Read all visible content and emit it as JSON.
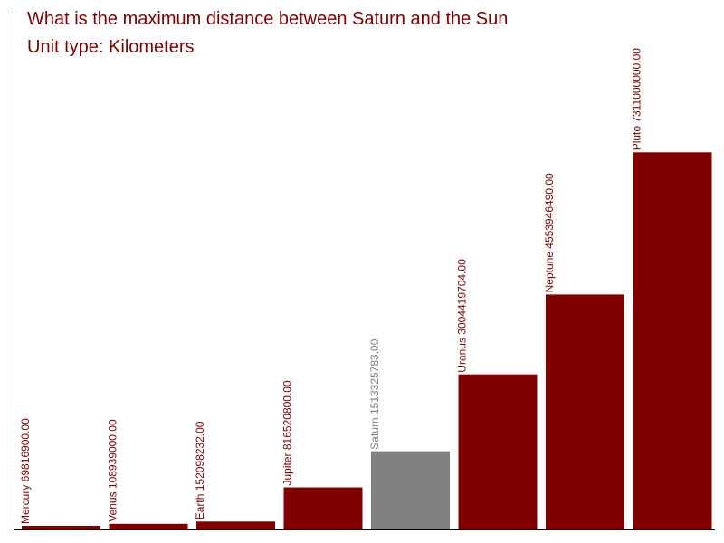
{
  "header": {
    "title": "What is the maximum distance between Saturn and the Sun",
    "subtitle": "Unit type: Kilometers"
  },
  "colors": {
    "bar": "#800000",
    "highlight": "#808080",
    "title": "#800000",
    "axis": "#000000"
  },
  "chart_data": {
    "type": "bar",
    "title": "What is the maximum distance between Saturn and the Sun",
    "subtitle": "Unit type: Kilometers",
    "categories": [
      "Mercury",
      "Venus",
      "Earth",
      "Jupiter",
      "Saturn",
      "Uranus",
      "Neptune",
      "Pluto"
    ],
    "values": [
      69816900.0,
      108939000.0,
      152098232.0,
      816520800.0,
      1513325783.0,
      3004419704.0,
      4553946490.0,
      7311000000.0
    ],
    "labels": [
      "Mercury 69816900.00",
      "Venus 108939000.00",
      "Earth 152098232.00",
      "Jupiter 816520800.00",
      "Saturn 1513325783.00",
      "Uranus 3004419704.00",
      "Neptune 4553946490.00",
      "Pluto 7311000000.00"
    ],
    "highlighted": "Saturn",
    "ylim": [
      0,
      10000000000
    ],
    "grid": false,
    "legend": "none"
  }
}
